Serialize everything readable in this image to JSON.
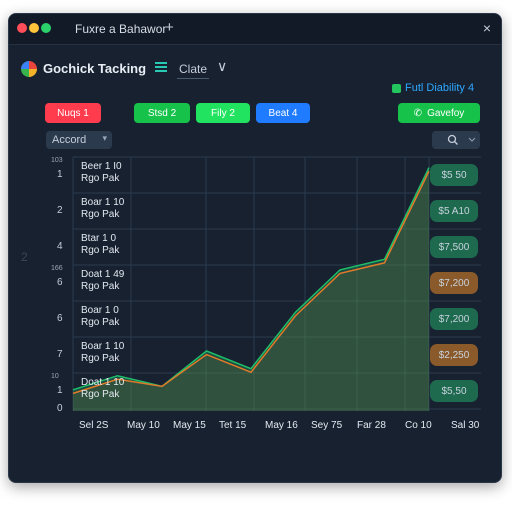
{
  "window": {
    "tab_title": "Fuxre a Bahawor",
    "plus_glyph": "+",
    "close_glyph": "×",
    "dot_colors": [
      "#ff4d5a",
      "#ffc43a",
      "#2bd26b"
    ]
  },
  "header": {
    "logo_icon": "multicolor-circle-icon",
    "app_title": "Gochick Tacking",
    "menu_icon": "hamburger-icon",
    "date_value": "Clate",
    "chevron_glyph": "∨"
  },
  "legend": {
    "label": "Futl Diability 4",
    "color": "#22c55e"
  },
  "toolbar": {
    "buttons": [
      {
        "label": "Nuqs 1",
        "color": "#ff3b4e"
      },
      {
        "label": "Stsd 2",
        "color": "#16c24a"
      },
      {
        "label": "Fily 2",
        "color": "#22e35f"
      },
      {
        "label": "Beat 4",
        "color": "#1f7bff"
      },
      {
        "label": "Gavefoy",
        "color": "#16c24a",
        "icon": "phone-icon"
      }
    ],
    "select_value": "Accord",
    "search_icon": "search-icon"
  },
  "rows": [
    {
      "small": "103",
      "num": "1",
      "title": "Beer 1 I0",
      "subtitle": "Rgo Pak",
      "pill": "$5 50",
      "pill_color": "#1e6a4e"
    },
    {
      "small": "",
      "num": "2",
      "title": "Boar 1 10",
      "subtitle": "Rgo Pak",
      "pill": "$5 A10",
      "pill_color": "#1e6a4e"
    },
    {
      "small": "",
      "num": "4",
      "title": "Btar 1 0",
      "subtitle": "Rgo Pak",
      "pill": "$7,500",
      "pill_color": "#1e6a4e"
    },
    {
      "small": "166",
      "num": "6",
      "title": "Doat 1 49",
      "subtitle": "Rgo Pak",
      "pill": "$7,200",
      "pill_color": "#8b5a2b"
    },
    {
      "small": "",
      "num": "6",
      "title": "Boar 1 0",
      "subtitle": "Rgo Pak",
      "pill": "$7,200",
      "pill_color": "#1e6a4e"
    },
    {
      "small": "",
      "num": "7",
      "title": "Boar 1 10",
      "subtitle": "Rgo Pak",
      "pill": "$2,250",
      "pill_color": "#8b5a2b"
    },
    {
      "small": "10",
      "num": "1",
      "title": "Doat 1 10",
      "subtitle": "Rgo Pak",
      "pill": "$5,50",
      "pill_color": "#1e6a4e"
    }
  ],
  "side_number": "2",
  "y_bottom_label": "0",
  "chart_data": {
    "type": "area",
    "x_labels": [
      "Sel 2S",
      "May 10",
      "May 15",
      "Tet 15",
      "May 16",
      "Sey 75",
      "Far 28",
      "Co 10",
      "Sal 30"
    ],
    "series": [
      {
        "color": "#1fbf6a",
        "values": [
          0.6,
          1.0,
          0.7,
          1.7,
          1.2,
          2.8,
          4.0,
          4.3,
          6.9
        ]
      },
      {
        "color": "#e07a2a",
        "values": [
          0.5,
          0.9,
          0.7,
          1.6,
          1.1,
          2.7,
          3.9,
          4.2,
          6.8
        ]
      }
    ]
  }
}
